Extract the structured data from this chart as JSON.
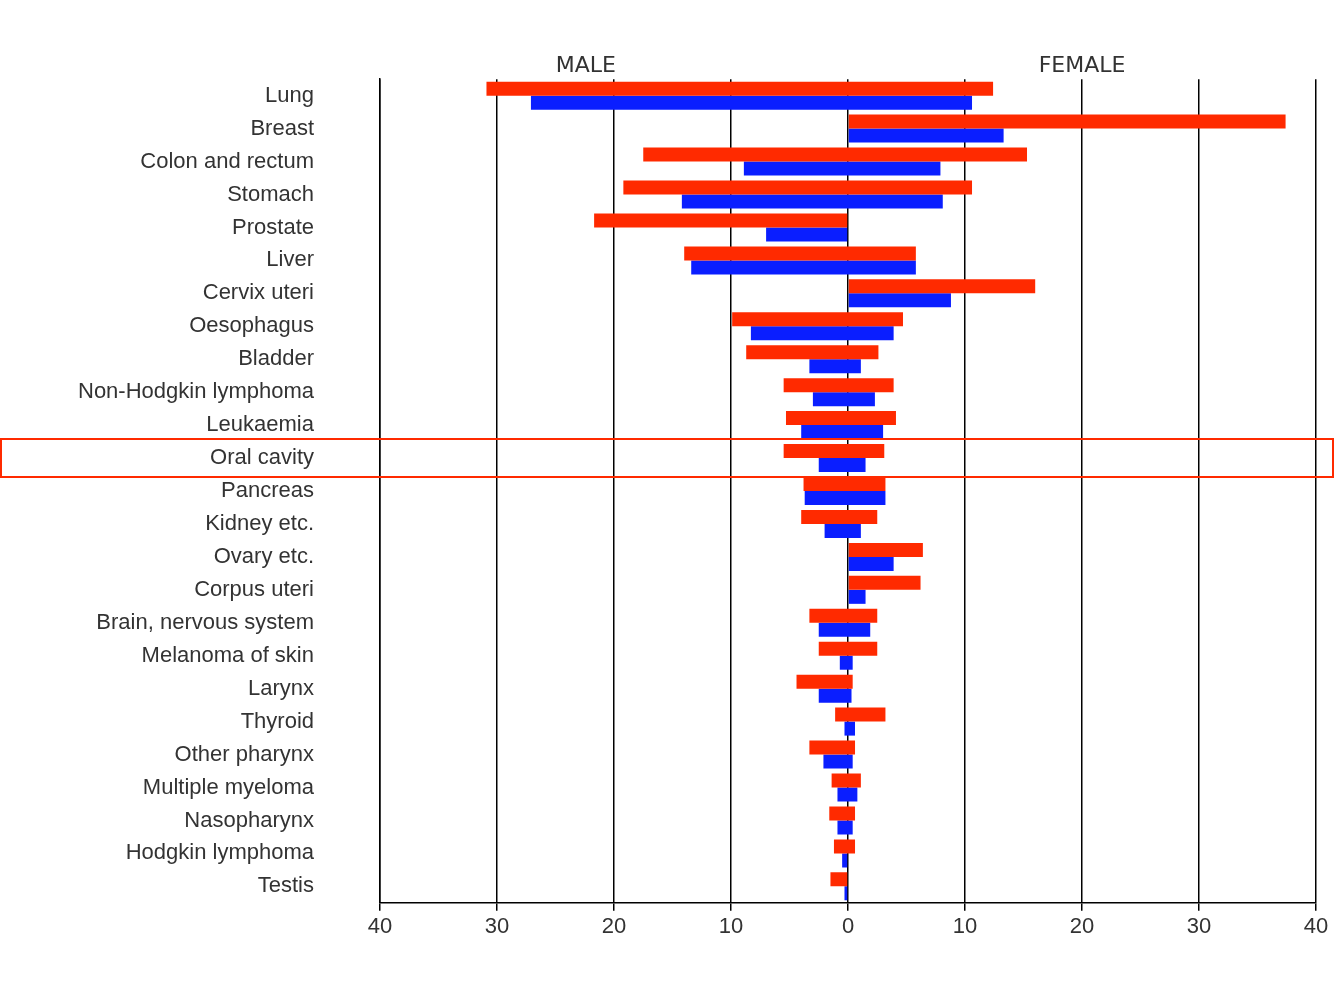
{
  "chart_data": {
    "type": "bar",
    "orientation": "horizontal",
    "categories": [
      "Lung",
      "Breast",
      "Colon and rectum",
      "Stomach",
      "Prostate",
      "Liver",
      "Cervix uteri",
      "Oesophagus",
      "Bladder",
      "Non-Hodgkin lymphoma",
      "Leukaemia",
      "Oral cavity",
      "Pancreas",
      "Kidney etc.",
      "Ovary etc.",
      "Corpus uteri",
      "Brain, nervous system",
      "Melanoma of skin",
      "Larynx",
      "Thyroid",
      "Other pharynx",
      "Multiple myeloma",
      "Nasopharynx",
      "Hodgkin lymphoma",
      "Testis"
    ],
    "series": [
      {
        "color": "#ff2a00",
        "base": [
          -30.9,
          0,
          -17.5,
          -19.2,
          -21.7,
          -14.0,
          0,
          -9.9,
          -8.7,
          -5.5,
          -5.3,
          -5.5,
          -3.8,
          -4.0,
          0,
          0,
          -3.3,
          -2.5,
          -4.4,
          -1.1,
          -3.3,
          -1.4,
          -1.6,
          -1.2,
          -1.5
        ],
        "values": [
          43.3,
          37.4,
          32.8,
          29.8,
          21.7,
          19.8,
          16.0,
          14.6,
          11.3,
          9.4,
          9.4,
          8.6,
          7.0,
          6.5,
          6.4,
          6.2,
          5.8,
          5.0,
          4.8,
          4.3,
          3.9,
          2.5,
          2.2,
          1.8,
          1.5
        ]
      },
      {
        "color": "#0a1eff",
        "base": [
          -27.1,
          0,
          -8.9,
          -14.2,
          -7.0,
          -13.4,
          0,
          -8.3,
          -3.3,
          -3.0,
          -4.0,
          -2.5,
          -3.7,
          -2.0,
          0,
          0,
          -2.5,
          -0.7,
          -2.5,
          -0.3,
          -2.1,
          -0.9,
          -0.9,
          -0.5,
          -0.3
        ],
        "values": [
          37.7,
          13.3,
          16.8,
          22.3,
          7.0,
          19.2,
          8.8,
          12.2,
          4.4,
          5.3,
          7.0,
          4.0,
          6.9,
          3.1,
          3.9,
          1.5,
          4.4,
          1.1,
          2.8,
          0.9,
          2.5,
          1.7,
          1.3,
          0.5,
          0.3
        ]
      }
    ],
    "xlim": [
      -40,
      40
    ],
    "xticks": [
      {
        "value": -40,
        "label": "40"
      },
      {
        "value": -30,
        "label": "30"
      },
      {
        "value": -20,
        "label": "20"
      },
      {
        "value": -10,
        "label": "10"
      },
      0,
      10,
      20,
      30,
      40
    ],
    "grid": "x",
    "annotations": [
      "MALE",
      "FEMALE"
    ]
  }
}
